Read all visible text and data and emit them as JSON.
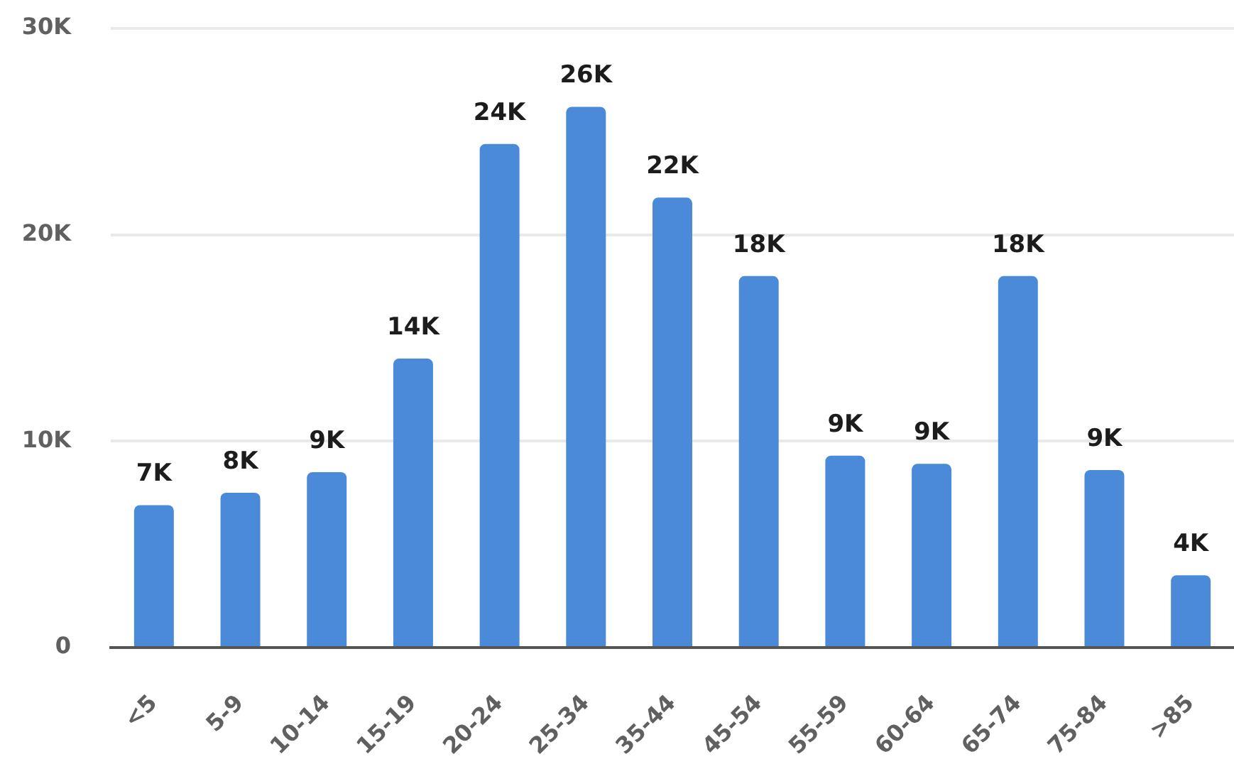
{
  "chart_data": {
    "type": "bar",
    "categories": [
      "<5",
      "5-9",
      "10-14",
      "15-19",
      "20-24",
      "25-34",
      "35-44",
      "45-54",
      "55-59",
      "60-64",
      "65-74",
      "75-84",
      ">85"
    ],
    "values": [
      6900,
      7500,
      8500,
      14000,
      24400,
      26200,
      21800,
      18000,
      9300,
      8900,
      18000,
      8600,
      3500
    ],
    "color": "#4a8ad9",
    "value_labels": [
      "7K",
      "8K",
      "9K",
      "14K",
      "24K",
      "26K",
      "22K",
      "18K",
      "9K",
      "9K",
      "18K",
      "9K",
      "4K"
    ],
    "ylim": [
      0,
      30000
    ],
    "yticks": [
      0,
      {
        "value": 10000,
        "label": "10K"
      },
      {
        "value": 20000,
        "label": "20K"
      },
      {
        "value": 30000,
        "label": "30K"
      }
    ],
    "grid": "y"
  }
}
